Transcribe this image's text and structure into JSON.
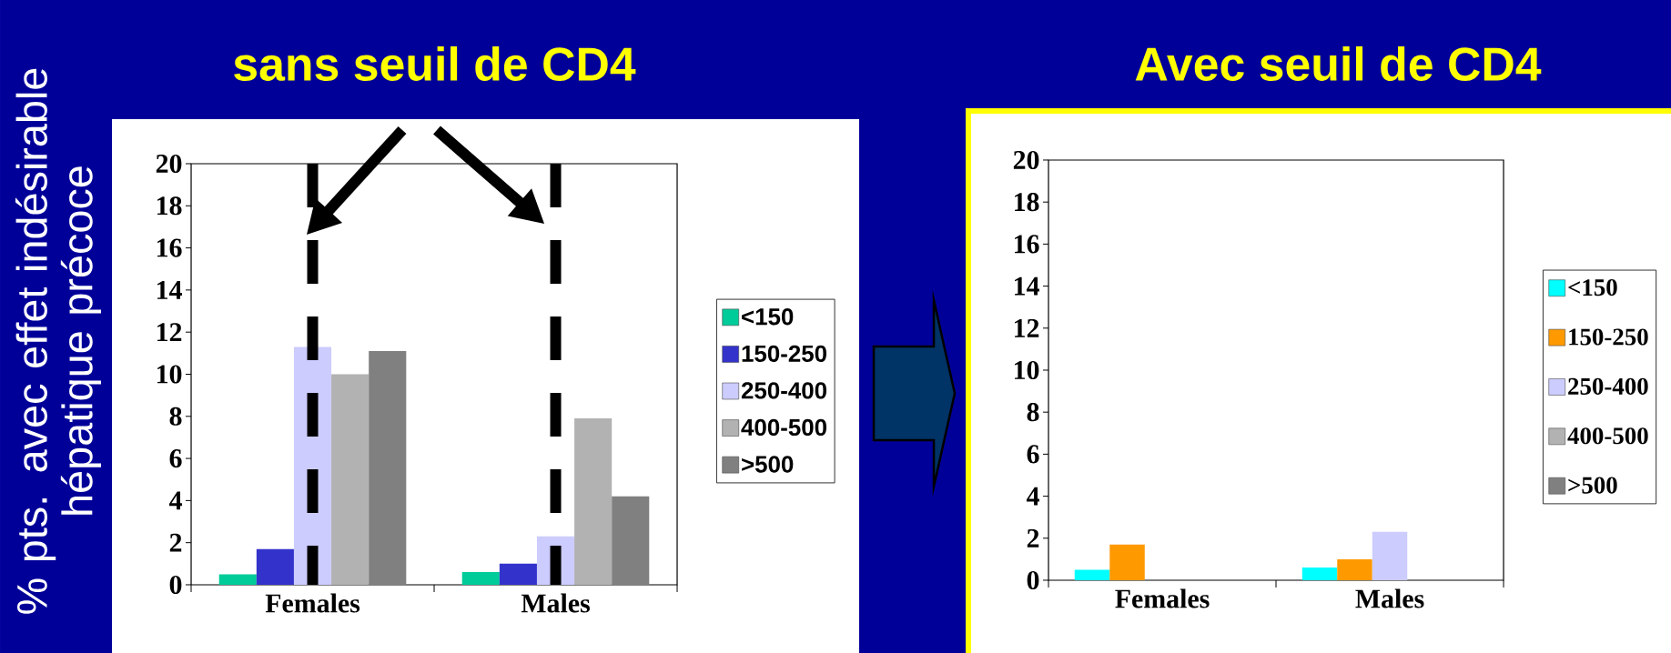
{
  "chart_data": [
    {
      "type": "bar",
      "title": "sans seuil de CD4",
      "ylabel": "% pts. avec effet indésirable hépatique précoce",
      "categories": [
        "Females",
        "Males"
      ],
      "series": [
        {
          "name": "<150",
          "color": "#00cc99",
          "values": [
            0.5,
            0.6
          ]
        },
        {
          "name": "150-250",
          "color": "#3333cc",
          "values": [
            1.7,
            1.0
          ]
        },
        {
          "name": "250-400",
          "color": "#ccccff",
          "values": [
            11.3,
            2.3
          ]
        },
        {
          "name": "400-500",
          "color": "#b2b2b2",
          "values": [
            10.0,
            7.9
          ]
        },
        {
          "name": ">500",
          "color": "#808080",
          "values": [
            11.1,
            4.2
          ]
        }
      ],
      "ylim": [
        0,
        20
      ],
      "yticks": [
        0,
        2,
        4,
        6,
        8,
        10,
        12,
        14,
        16,
        18,
        20
      ],
      "legend": "right",
      "ref_lines": [
        {
          "axis": "x",
          "value": "Females",
          "line_style": "dashed",
          "color": "#000000"
        },
        {
          "axis": "x",
          "value": "Males",
          "line_style": "dashed",
          "color": "#000000"
        }
      ]
    },
    {
      "type": "bar",
      "title": "Avec seuil de CD4",
      "categories": [
        "Females",
        "Males"
      ],
      "series": [
        {
          "name": "<150",
          "color": "#00ffff",
          "values": [
            0.5,
            0.6
          ]
        },
        {
          "name": "150-250",
          "color": "#ff9900",
          "values": [
            1.7,
            1.0
          ]
        },
        {
          "name": "250-400",
          "color": "#ccccff",
          "values": [
            null,
            2.3
          ]
        },
        {
          "name": "400-500",
          "color": "#b2b2b2",
          "values": [
            null,
            null
          ]
        },
        {
          "name": ">500",
          "color": "#808080",
          "values": [
            null,
            null
          ]
        }
      ],
      "ylim": [
        0,
        20
      ],
      "yticks": [
        0,
        2,
        4,
        6,
        8,
        10,
        12,
        14,
        16,
        18,
        20
      ],
      "legend": "right"
    }
  ]
}
